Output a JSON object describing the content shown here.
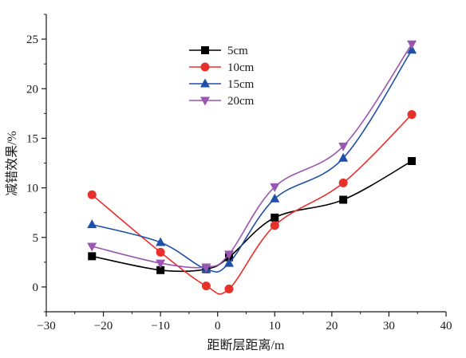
{
  "chart_data": {
    "type": "line",
    "xlabel": "距断层距离/m",
    "ylabel": "减错效果/%",
    "xlim": [
      -30,
      40
    ],
    "ylim": [
      -2.5,
      27.5
    ],
    "xticks": [
      -30,
      -20,
      -10,
      0,
      10,
      20,
      30,
      40
    ],
    "yticks": [
      0,
      5,
      10,
      15,
      20,
      25
    ],
    "grid": false,
    "legend_position": "top-left",
    "series": [
      {
        "name": "5cm",
        "color": "#000000",
        "marker": "square",
        "x": [
          -22,
          -10,
          -2,
          2,
          10,
          22,
          34
        ],
        "y": [
          3.1,
          1.7,
          1.8,
          3.0,
          7.0,
          8.8,
          12.7
        ]
      },
      {
        "name": "10cm",
        "color": "#e8302a",
        "marker": "circle",
        "x": [
          -22,
          -10,
          -2,
          2,
          10,
          22,
          34
        ],
        "y": [
          9.3,
          3.5,
          0.1,
          -0.2,
          6.2,
          10.5,
          17.4
        ]
      },
      {
        "name": "15cm",
        "color": "#1f4fa8",
        "marker": "triangle-up",
        "x": [
          -22,
          -10,
          -2,
          2,
          10,
          22,
          34
        ],
        "y": [
          6.3,
          4.5,
          1.8,
          2.4,
          8.9,
          13.0,
          23.9
        ]
      },
      {
        "name": "20cm",
        "color": "#9a56b0",
        "marker": "triangle-down",
        "x": [
          -22,
          -10,
          -2,
          2,
          10,
          22,
          34
        ],
        "y": [
          4.1,
          2.4,
          2.0,
          3.3,
          10.1,
          14.2,
          24.5
        ]
      }
    ]
  }
}
